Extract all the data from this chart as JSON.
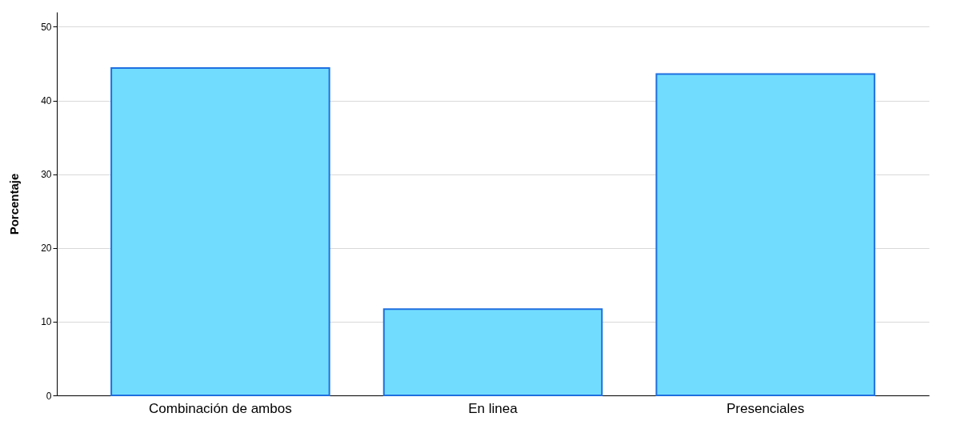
{
  "chart_data": {
    "type": "bar",
    "ylabel": "Porcentaje",
    "categories": [
      "Combinación de ambos",
      "En linea",
      "Presenciales"
    ],
    "values": [
      44.4,
      11.7,
      43.6
    ],
    "color": "#72dcfe",
    "ylim": [
      0,
      52
    ],
    "yticks": [
      0,
      10,
      20,
      30,
      40,
      50
    ],
    "grid": "y"
  }
}
